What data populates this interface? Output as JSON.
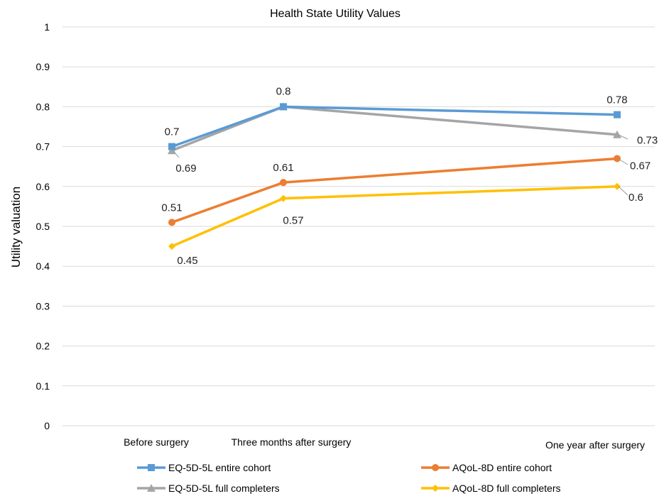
{
  "chart_data": {
    "type": "line",
    "title": "Health State Utility Values",
    "xlabel": "",
    "ylabel": "Utility valuation",
    "ylim": [
      0,
      1
    ],
    "yticks": [
      0,
      0.1,
      0.2,
      0.3,
      0.4,
      0.5,
      0.6,
      0.7,
      0.8,
      0.9,
      1
    ],
    "ytick_labels": [
      "0",
      "0.1",
      "0.2",
      "0.3",
      "0.4",
      "0.5",
      "0.6",
      "0.7",
      "0.8",
      "0.9",
      "1"
    ],
    "categories": [
      "Before surgery",
      "Three months after surgery",
      "One year after surgery"
    ],
    "grid": true,
    "legend_position": "bottom",
    "series": [
      {
        "name": "EQ-5D-5L entire cohort",
        "values": [
          0.7,
          0.8,
          0.78
        ],
        "labels": [
          "0.7",
          "0.8",
          "0.78"
        ],
        "color": "#5b9bd5",
        "marker": "square"
      },
      {
        "name": "EQ-5D-5L full completers",
        "values": [
          0.69,
          0.8,
          0.73
        ],
        "labels": [
          "0.69",
          "",
          "0.73"
        ],
        "color": "#a5a5a5",
        "marker": "triangle"
      },
      {
        "name": "AQoL-8D entire cohort",
        "values": [
          0.51,
          0.61,
          0.67
        ],
        "labels": [
          "0.51",
          "0.61",
          "0.67"
        ],
        "color": "#ed7d31",
        "marker": "circle"
      },
      {
        "name": "AQoL-8D full completers",
        "values": [
          0.45,
          0.57,
          0.6
        ],
        "labels": [
          "0.45",
          "0.57",
          "0.6"
        ],
        "color": "#ffc000",
        "marker": "diamond"
      }
    ]
  }
}
